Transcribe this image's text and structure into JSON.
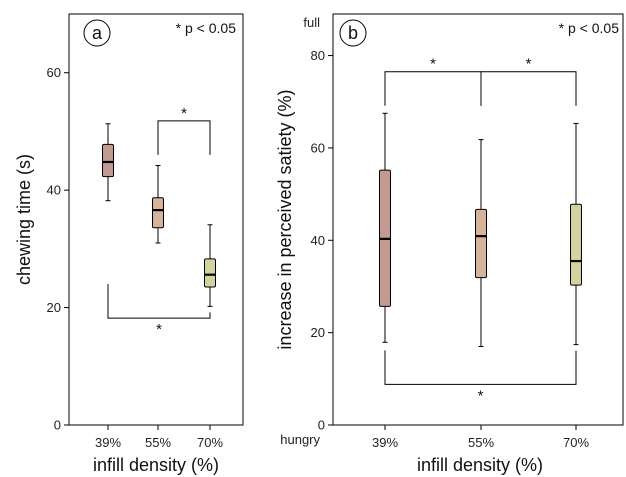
{
  "colors": {
    "39%": "#c29a90",
    "55%": "#d5b49a",
    "70%": "#d3d39e"
  },
  "chart_data": [
    {
      "type": "box",
      "panel_label": "a",
      "note": "* p < 0.05",
      "xlabel": "infill density (%)",
      "ylabel": "chewing time (s)",
      "ylim": [
        0,
        70
      ],
      "yticks": [
        "0",
        "20",
        "40",
        "60"
      ],
      "categories": [
        "39%",
        "55%",
        "70%"
      ],
      "boxes": [
        {
          "category": "39%",
          "min": 38.2,
          "q1": 42.3,
          "median": 44.8,
          "q3": 47.8,
          "max": 51.3
        },
        {
          "category": "55%",
          "min": 31.0,
          "q1": 33.6,
          "median": 36.6,
          "q3": 38.7,
          "max": 44.2
        },
        {
          "category": "70%",
          "min": 20.2,
          "q1": 23.5,
          "median": 25.6,
          "q3": 28.3,
          "max": 34.1
        }
      ],
      "comparisons": [
        {
          "from": "55%",
          "to": "70%",
          "level": 51.8,
          "label": "*"
        },
        {
          "from": "39%",
          "to": "70%",
          "level": 18.2,
          "label": "*"
        }
      ]
    },
    {
      "type": "box",
      "panel_label": "b",
      "note": "* p < 0.05",
      "xlabel": "infill density (%)",
      "ylabel": "increase in perceived satiety (%)",
      "ylim": [
        0,
        89
      ],
      "yticks": [
        "0",
        "20",
        "40",
        "60",
        "80"
      ],
      "y_extra_labels": {
        "top": "full",
        "bottom": "hungry"
      },
      "categories": [
        "39%",
        "55%",
        "70%"
      ],
      "boxes": [
        {
          "category": "39%",
          "min": 17.9,
          "q1": 25.7,
          "median": 40.3,
          "q3": 55.2,
          "max": 67.5
        },
        {
          "category": "55%",
          "min": 17.0,
          "q1": 31.9,
          "median": 40.9,
          "q3": 46.7,
          "max": 61.8
        },
        {
          "category": "70%",
          "min": 17.4,
          "q1": 30.3,
          "median": 35.5,
          "q3": 47.8,
          "max": 65.3
        }
      ],
      "comparisons": [
        {
          "from": "39%",
          "to": "55%",
          "level": 76.5,
          "label": "*"
        },
        {
          "from": "55%",
          "to": "70%",
          "level": 76.5,
          "label": "*"
        },
        {
          "from": "39%",
          "to": "70%",
          "level": 8.8,
          "label": "*"
        }
      ]
    }
  ]
}
